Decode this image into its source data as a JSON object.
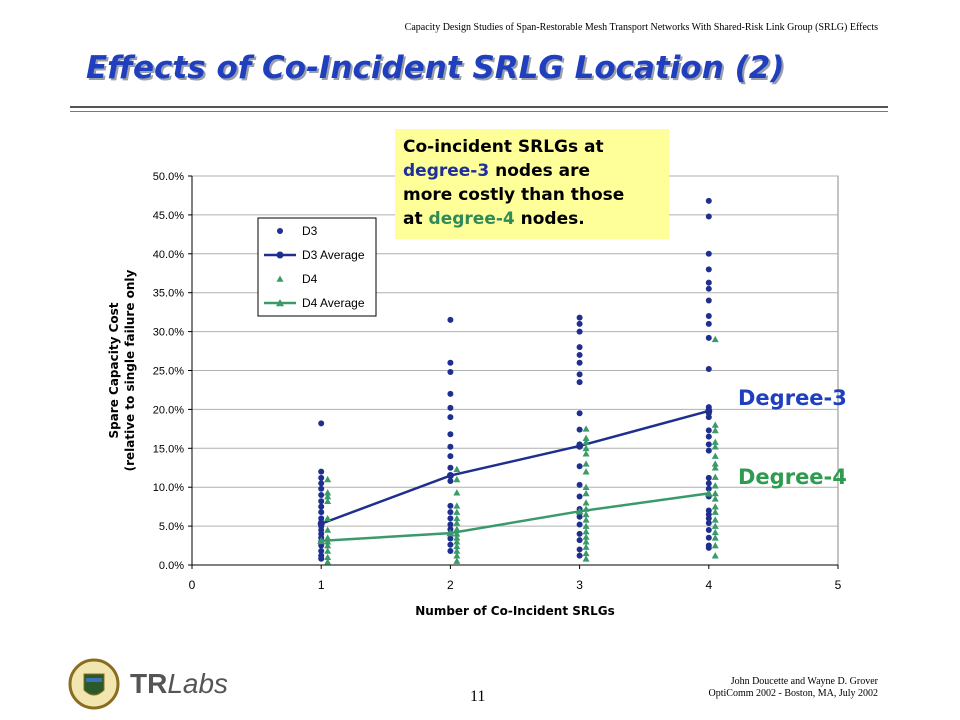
{
  "slide": {
    "header": "Capacity Design Studies of Span-Restorable Mesh Transport Networks With Shared-Risk Link Group (SRLG) Effects",
    "title": "Effects of Co-Incident SRLG Location (2)",
    "callout": {
      "line1": "Co-incident SRLGs at",
      "highlight3": "degree-3",
      "line2": " nodes are",
      "line3": "more costly than those",
      "line4a": "at ",
      "highlight4": "degree-4",
      "line4b": " nodes."
    },
    "label_degree3": "Degree-3",
    "label_degree4": "Degree-4",
    "footer_line1": "John Doucette and Wayne D. Grover",
    "footer_line2": "OptiComm 2002 - Boston, MA, July 2002",
    "page_number": "11",
    "logo_text": "TR",
    "logo_text2": "Labs",
    "colors": {
      "degree3": "#1f2f8f",
      "degree4": "#3a9a6a",
      "title": "#1f3fbf",
      "callout_bg": "#ffff99"
    }
  },
  "chart_data": {
    "type": "scatter",
    "xlabel": "Number of Co-Incident SRLGs",
    "ylabel_line1": "Spare Capacity Cost",
    "ylabel_line2": "(relative to single failure only",
    "xlim": [
      0,
      5
    ],
    "ylim": [
      0,
      50
    ],
    "x_ticks": [
      "0",
      "1",
      "2",
      "3",
      "4",
      "5"
    ],
    "y_ticks": [
      "0.0%",
      "5.0%",
      "10.0%",
      "15.0%",
      "20.0%",
      "25.0%",
      "30.0%",
      "35.0%",
      "40.0%",
      "45.0%",
      "50.0%"
    ],
    "series": [
      {
        "name": "D3",
        "marker": "circle",
        "color": "#1f2f8f",
        "points": [
          [
            1,
            18.2
          ],
          [
            1,
            12
          ],
          [
            1,
            11.2
          ],
          [
            1,
            10.5
          ],
          [
            1,
            9.8
          ],
          [
            1,
            9
          ],
          [
            1,
            8.2
          ],
          [
            1,
            7.5
          ],
          [
            1,
            6.8
          ],
          [
            1,
            6
          ],
          [
            1,
            5.5
          ],
          [
            1,
            5
          ],
          [
            1,
            4.5
          ],
          [
            1,
            4
          ],
          [
            1,
            3.5
          ],
          [
            1,
            3
          ],
          [
            1,
            2.5
          ],
          [
            1,
            1.8
          ],
          [
            1,
            1.2
          ],
          [
            1,
            0.8
          ],
          [
            2,
            31.5
          ],
          [
            2,
            26
          ],
          [
            2,
            24.8
          ],
          [
            2,
            22
          ],
          [
            2,
            20.2
          ],
          [
            2,
            19
          ],
          [
            2,
            16.8
          ],
          [
            2,
            15.2
          ],
          [
            2,
            14
          ],
          [
            2,
            12.5
          ],
          [
            2,
            11.5
          ],
          [
            2,
            10.8
          ],
          [
            2,
            7.6
          ],
          [
            2,
            6.8
          ],
          [
            2,
            6
          ],
          [
            2,
            5.2
          ],
          [
            2,
            4.6
          ],
          [
            2,
            4
          ],
          [
            2,
            3.4
          ],
          [
            2,
            2.6
          ],
          [
            2,
            1.8
          ],
          [
            3,
            31.8
          ],
          [
            3,
            31
          ],
          [
            3,
            30
          ],
          [
            3,
            28
          ],
          [
            3,
            27
          ],
          [
            3,
            26
          ],
          [
            3,
            24.5
          ],
          [
            3,
            23.5
          ],
          [
            3,
            19.5
          ],
          [
            3,
            17.4
          ],
          [
            3,
            15.5
          ],
          [
            3,
            15.2
          ],
          [
            3,
            12.7
          ],
          [
            3,
            10.3
          ],
          [
            3,
            8.8
          ],
          [
            3,
            7.2
          ],
          [
            3,
            6.2
          ],
          [
            3,
            5.2
          ],
          [
            3,
            4
          ],
          [
            3,
            3.2
          ],
          [
            3,
            2
          ],
          [
            3,
            1.2
          ],
          [
            4,
            46.8
          ],
          [
            4,
            44.8
          ],
          [
            4,
            40
          ],
          [
            4,
            38
          ],
          [
            4,
            36.3
          ],
          [
            4,
            35.5
          ],
          [
            4,
            34
          ],
          [
            4,
            32
          ],
          [
            4,
            31
          ],
          [
            4,
            29.2
          ],
          [
            4,
            25.2
          ],
          [
            4,
            20.3
          ],
          [
            4,
            20
          ],
          [
            4,
            19.5
          ],
          [
            4,
            19
          ],
          [
            4,
            17.3
          ],
          [
            4,
            16.5
          ],
          [
            4,
            15.5
          ],
          [
            4,
            14.7
          ],
          [
            4,
            11.2
          ],
          [
            4,
            10.5
          ],
          [
            4,
            9.8
          ],
          [
            4,
            8.8
          ],
          [
            4,
            7
          ],
          [
            4,
            6.5
          ],
          [
            4,
            6
          ],
          [
            4,
            5.4
          ],
          [
            4,
            4.5
          ],
          [
            4,
            3.5
          ],
          [
            4,
            2.5
          ],
          [
            4,
            2.2
          ]
        ]
      },
      {
        "name": "D3 Average",
        "marker": "line",
        "color": "#1f2f8f",
        "points": [
          [
            1,
            5.3
          ],
          [
            2,
            11.5
          ],
          [
            3,
            15.3
          ],
          [
            4,
            19.8
          ]
        ]
      },
      {
        "name": "D4",
        "marker": "triangle",
        "color": "#3a9a6a",
        "points": [
          [
            1.05,
            11
          ],
          [
            1.05,
            9.3
          ],
          [
            1.05,
            8.8
          ],
          [
            1.05,
            8.2
          ],
          [
            1.05,
            6
          ],
          [
            1.05,
            4.5
          ],
          [
            1.05,
            3.5
          ],
          [
            1.05,
            3
          ],
          [
            1.05,
            2.5
          ],
          [
            1.05,
            1.8
          ],
          [
            1.05,
            1
          ],
          [
            1.05,
            0.4
          ],
          [
            2.05,
            12.3
          ],
          [
            2.05,
            11
          ],
          [
            2.05,
            9.3
          ],
          [
            2.05,
            7.6
          ],
          [
            2.05,
            6.8
          ],
          [
            2.05,
            6
          ],
          [
            2.05,
            5.4
          ],
          [
            2.05,
            4.6
          ],
          [
            2.05,
            4
          ],
          [
            2.05,
            3.5
          ],
          [
            2.05,
            3
          ],
          [
            2.05,
            2.4
          ],
          [
            2.05,
            1.8
          ],
          [
            2.05,
            1.2
          ],
          [
            2.05,
            0.5
          ],
          [
            3.05,
            17.5
          ],
          [
            3.05,
            16.3
          ],
          [
            3.05,
            15.8
          ],
          [
            3.05,
            15
          ],
          [
            3.05,
            14.3
          ],
          [
            3.05,
            13
          ],
          [
            3.05,
            12
          ],
          [
            3.05,
            10
          ],
          [
            3.05,
            9.2
          ],
          [
            3.05,
            8
          ],
          [
            3.05,
            7.2
          ],
          [
            3.05,
            6.5
          ],
          [
            3.05,
            5.8
          ],
          [
            3.05,
            5
          ],
          [
            3.05,
            4.3
          ],
          [
            3.05,
            3.6
          ],
          [
            3.05,
            3
          ],
          [
            3.05,
            2.3
          ],
          [
            3.05,
            1.5
          ],
          [
            3.05,
            0.8
          ],
          [
            4.05,
            29
          ],
          [
            4.05,
            18
          ],
          [
            4.05,
            17.3
          ],
          [
            4.05,
            15.8
          ],
          [
            4.05,
            15.2
          ],
          [
            4.05,
            14
          ],
          [
            4.05,
            13
          ],
          [
            4.05,
            12.5
          ],
          [
            4.05,
            11.3
          ],
          [
            4.05,
            10.2
          ],
          [
            4.05,
            9.2
          ],
          [
            4.05,
            8.5
          ],
          [
            4.05,
            7.5
          ],
          [
            4.05,
            6.8
          ],
          [
            4.05,
            5.8
          ],
          [
            4.05,
            5
          ],
          [
            4.05,
            4.2
          ],
          [
            4.05,
            3.5
          ],
          [
            4.05,
            2.5
          ],
          [
            4.05,
            1.2
          ]
        ]
      },
      {
        "name": "D4 Average",
        "marker": "line-triangle",
        "color": "#3a9a6a",
        "points": [
          [
            1,
            3.1
          ],
          [
            2,
            4.1
          ],
          [
            3,
            6.9
          ],
          [
            4,
            9.2
          ]
        ]
      }
    ],
    "legend": [
      "D3",
      "D3 Average",
      "D4",
      "D4 Average"
    ],
    "legend_position": "top-left",
    "grid": true
  }
}
